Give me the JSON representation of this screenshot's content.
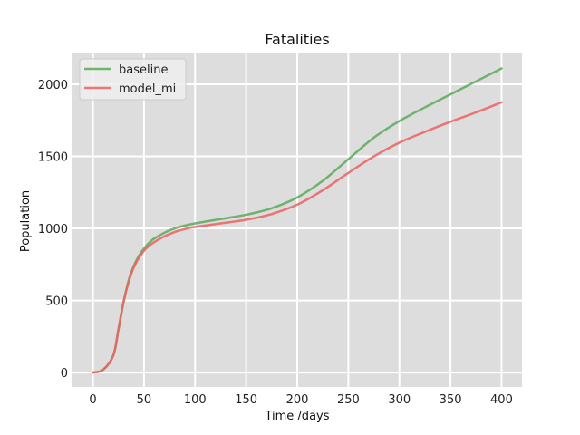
{
  "chart_data": {
    "type": "line",
    "title": "Fatalities",
    "xlabel": "Time /days",
    "ylabel": "Population",
    "xlim": [
      -20,
      420
    ],
    "ylim": [
      -100,
      2220
    ],
    "xticks": [
      0,
      50,
      100,
      150,
      200,
      250,
      300,
      350,
      400
    ],
    "yticks": [
      0,
      500,
      1000,
      1500,
      2000
    ],
    "grid": true,
    "legend_position": "top-left",
    "background": "#dddddd",
    "grid_color": "#ffffff",
    "x": [
      0,
      10,
      20,
      25,
      30,
      35,
      40,
      45,
      50,
      55,
      60,
      70,
      80,
      90,
      100,
      125,
      150,
      175,
      200,
      225,
      250,
      275,
      300,
      325,
      350,
      375,
      400
    ],
    "series": [
      {
        "name": "baseline",
        "color": "#5aaa5a",
        "values": [
          0,
          20,
          120,
          300,
          490,
          640,
          740,
          810,
          860,
          900,
          930,
          970,
          1000,
          1020,
          1035,
          1065,
          1095,
          1140,
          1215,
          1330,
          1480,
          1630,
          1745,
          1840,
          1930,
          2020,
          2110
        ]
      },
      {
        "name": "model_mi",
        "color": "#ee6060",
        "values": [
          0,
          20,
          120,
          300,
          490,
          630,
          730,
          795,
          845,
          880,
          905,
          945,
          975,
          995,
          1010,
          1035,
          1060,
          1100,
          1165,
          1265,
          1385,
          1500,
          1595,
          1670,
          1740,
          1805,
          1875
        ]
      }
    ]
  }
}
